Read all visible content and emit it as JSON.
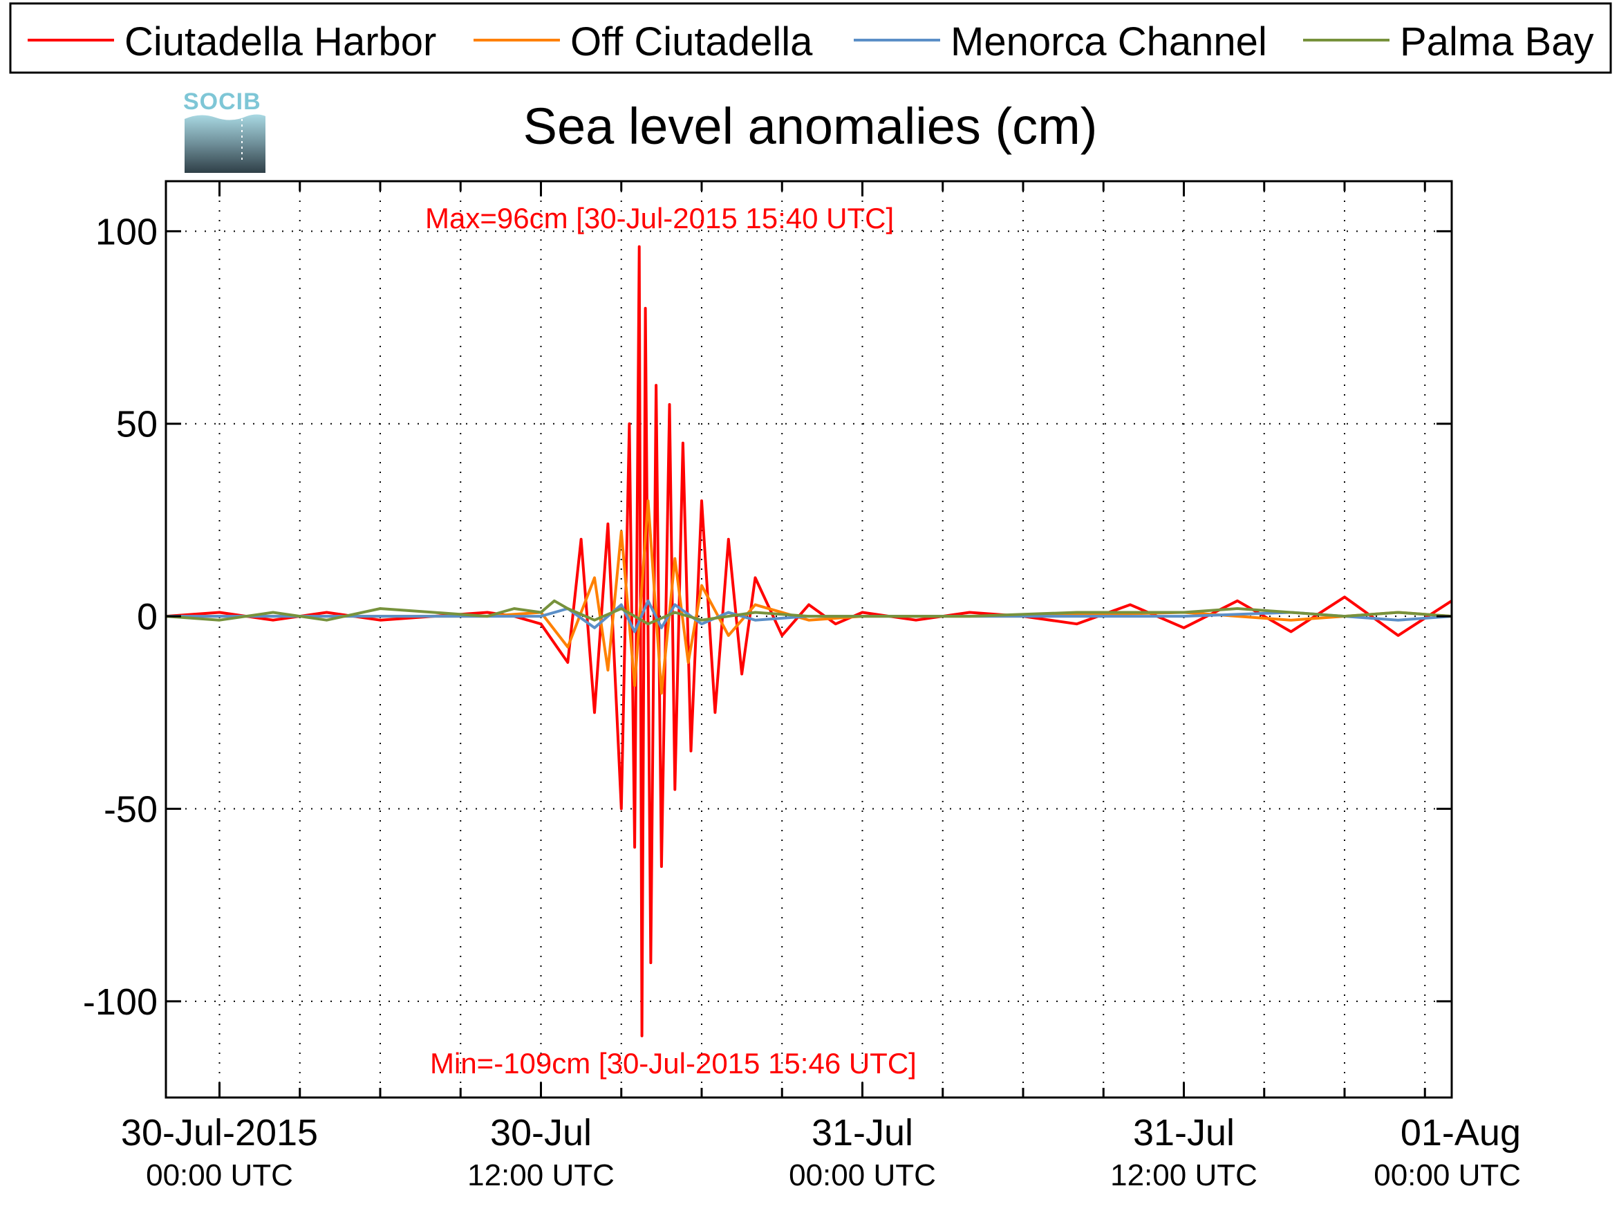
{
  "legend": {
    "items": [
      {
        "label": "Ciutadella Harbor",
        "color": "#ff0000"
      },
      {
        "label": "Off Ciutadella",
        "color": "#ff8000"
      },
      {
        "label": "Menorca Channel",
        "color": "#5b8fc7"
      },
      {
        "label": "Palma Bay",
        "color": "#77923c"
      }
    ]
  },
  "logo": {
    "text": "SOCIB"
  },
  "annotations": {
    "max_text": "Max=96cm [30-Jul-2015 15:40 UTC]",
    "min_text": "Min=-109cm [30-Jul-2015 15:46 UTC]"
  },
  "chart_data": {
    "type": "line",
    "title": "Sea level anomalies (cm)",
    "xlabel": "",
    "ylabel": "",
    "x_unit": "hours since 30-Jul-2015 00:00 UTC",
    "xlim": [
      -2,
      46
    ],
    "ylim": [
      -125,
      113
    ],
    "grid": true,
    "legend_position": "top",
    "y_ticks": [
      -100,
      -50,
      0,
      50,
      100
    ],
    "y_tick_labels": [
      "-100",
      "-50",
      "0",
      "50",
      "100"
    ],
    "x_ticks": [
      0,
      12,
      24,
      36,
      48
    ],
    "x_tick_labels": [
      {
        "date": "30-Jul-2015",
        "time": "00:00 UTC"
      },
      {
        "date": "30-Jul",
        "time": "12:00 UTC"
      },
      {
        "date": "31-Jul",
        "time": "00:00 UTC"
      },
      {
        "date": "31-Jul",
        "time": "12:00 UTC"
      },
      {
        "date": "01-Aug",
        "time": "00:00 UTC"
      }
    ],
    "series": [
      {
        "name": "Ciutadella Harbor",
        "color": "#ff0000",
        "x": [
          -2,
          0,
          2,
          4,
          6,
          8,
          10,
          11,
          12,
          13,
          13.5,
          14,
          14.5,
          15,
          15.3,
          15.5,
          15.67,
          15.77,
          15.9,
          16.1,
          16.3,
          16.5,
          16.8,
          17,
          17.3,
          17.6,
          18,
          18.5,
          19,
          19.5,
          20,
          21,
          22,
          23,
          24,
          26,
          28,
          30,
          32,
          34,
          36,
          38,
          40,
          42,
          44,
          46
        ],
        "y": [
          0,
          1,
          -1,
          1,
          -1,
          0,
          1,
          0,
          -2,
          -12,
          20,
          -25,
          24,
          -50,
          50,
          -60,
          96,
          -109,
          80,
          -90,
          60,
          -65,
          55,
          -45,
          45,
          -35,
          30,
          -25,
          20,
          -15,
          10,
          -5,
          3,
          -2,
          1,
          -1,
          1,
          0,
          -2,
          3,
          -3,
          4,
          -4,
          5,
          -5,
          4
        ]
      },
      {
        "name": "Off Ciutadella",
        "color": "#ff8000",
        "x": [
          -2,
          0,
          4,
          8,
          10,
          12,
          13,
          14,
          14.5,
          15,
          15.5,
          16,
          16.5,
          17,
          17.5,
          18,
          19,
          20,
          22,
          24,
          30,
          36,
          40,
          44,
          46
        ],
        "y": [
          0,
          0,
          0,
          0,
          0,
          1,
          -8,
          10,
          -14,
          22,
          -18,
          30,
          -20,
          15,
          -12,
          8,
          -5,
          3,
          -1,
          0,
          0,
          1,
          -1,
          1,
          0
        ]
      },
      {
        "name": "Menorca Channel",
        "color": "#5b8fc7",
        "x": [
          -2,
          0,
          4,
          8,
          12,
          13,
          14,
          15,
          15.5,
          16,
          16.5,
          17,
          18,
          19,
          20,
          22,
          24,
          30,
          36,
          40,
          44,
          46
        ],
        "y": [
          0,
          0,
          0,
          0,
          0,
          2,
          -3,
          3,
          -4,
          4,
          -3,
          3,
          -2,
          1,
          -1,
          0,
          0,
          0,
          0,
          1,
          -1,
          0
        ]
      },
      {
        "name": "Palma Bay",
        "color": "#77923c",
        "x": [
          -2,
          0,
          2,
          4,
          6,
          8,
          10,
          11,
          12,
          12.5,
          13,
          14,
          15,
          16,
          17,
          18,
          20,
          22,
          24,
          28,
          32,
          36,
          38,
          40,
          42,
          44,
          46
        ],
        "y": [
          0,
          -1,
          1,
          -1,
          2,
          1,
          0,
          2,
          1,
          4,
          2,
          -1,
          2,
          -2,
          1,
          -1,
          1,
          0,
          0,
          0,
          1,
          1,
          2,
          1,
          0,
          1,
          0
        ]
      }
    ]
  }
}
